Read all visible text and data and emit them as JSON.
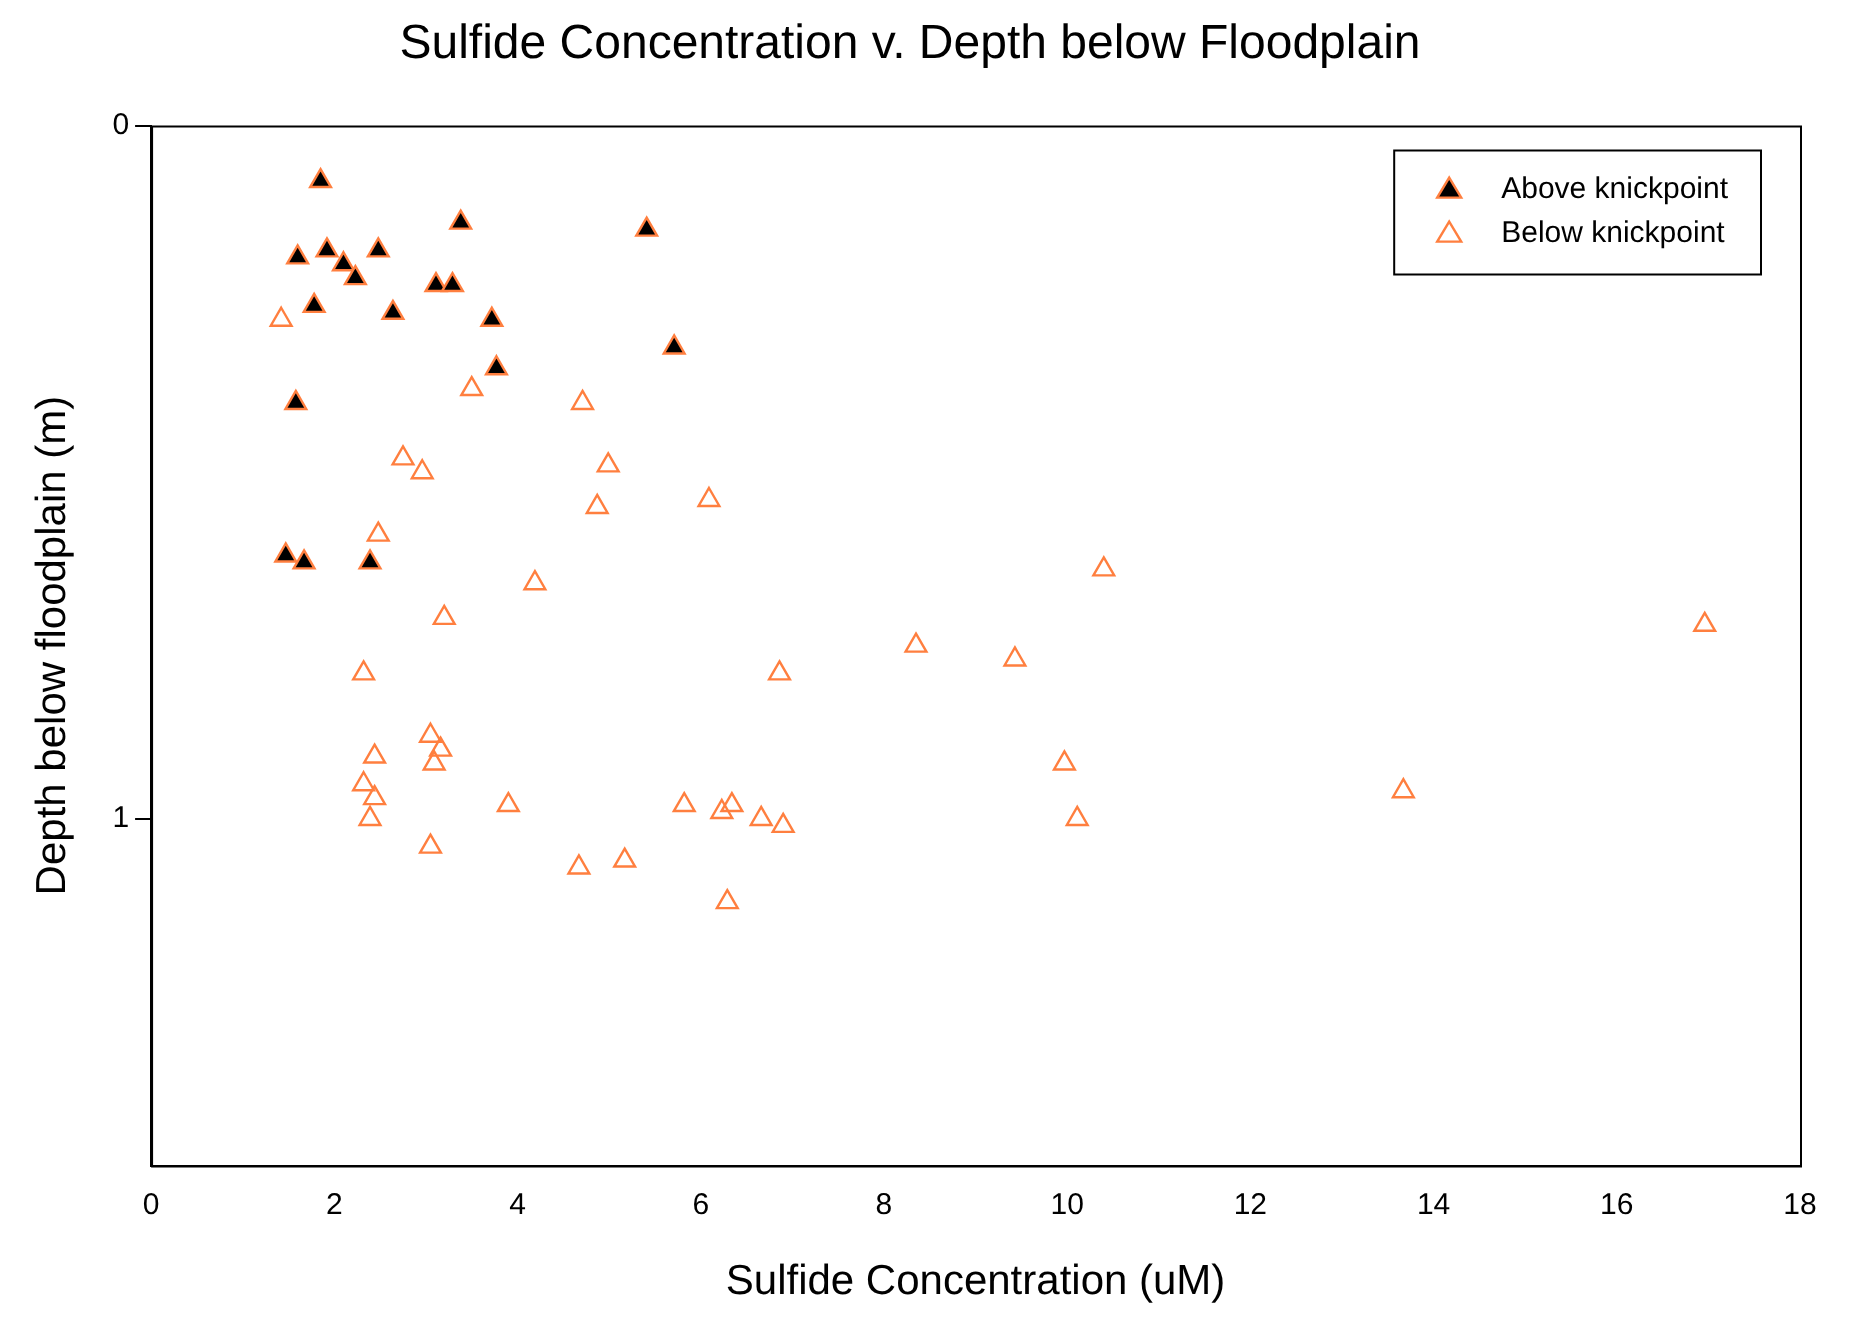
{
  "chart_data": {
    "type": "scatter",
    "title": "Sulfide Concentration v. Depth below Floodplain",
    "xlabel": "Sulfide Concentration (uM)",
    "ylabel": "Depth below floodplain (m)",
    "xlim": [
      0,
      18
    ],
    "xticks": [
      0,
      2,
      4,
      6,
      8,
      10,
      12,
      14,
      16,
      18
    ],
    "ylim": [
      1.5,
      0
    ],
    "yticks": [
      0,
      1
    ],
    "marker": "triangle",
    "legend": "top right",
    "grid": false,
    "series": [
      {
        "name": "Above knickpoint",
        "color": "#000000",
        "x": [
          1.85,
          5.41,
          3.38,
          1.6,
          1.92,
          2.1,
          2.23,
          2.48,
          1.78,
          2.64,
          3.11,
          3.29,
          3.72,
          3.77,
          5.71,
          1.58,
          1.47,
          1.67,
          2.39
        ],
        "values": [
          0.08,
          0.15,
          0.14,
          0.19,
          0.18,
          0.2,
          0.22,
          0.18,
          0.26,
          0.27,
          0.23,
          0.23,
          0.28,
          0.35,
          0.32,
          0.4,
          0.62,
          0.63,
          0.63
        ]
      },
      {
        "name": "Below knickpoint",
        "color": "#ff7f3f",
        "x": [
          1.42,
          3.5,
          4.71,
          2.75,
          2.96,
          4.99,
          4.87,
          6.09,
          2.48,
          10.4,
          4.19,
          3.2,
          8.35,
          9.43,
          16.96,
          6.86,
          2.32,
          3.05,
          3.16,
          3.09,
          2.44,
          2.32,
          2.44,
          2.39,
          3.9,
          9.97,
          3.05,
          5.82,
          6.23,
          6.34,
          6.66,
          6.9,
          10.11,
          13.67,
          4.67,
          5.17,
          6.29
        ],
        "values": [
          0.28,
          0.38,
          0.4,
          0.48,
          0.5,
          0.49,
          0.55,
          0.54,
          0.59,
          0.64,
          0.66,
          0.71,
          0.75,
          0.77,
          0.72,
          0.79,
          0.79,
          0.88,
          0.9,
          0.92,
          0.91,
          0.95,
          0.97,
          1.0,
          0.98,
          0.92,
          1.04,
          0.98,
          0.99,
          0.98,
          1.0,
          1.01,
          1.0,
          0.96,
          1.07,
          1.06,
          1.12
        ]
      }
    ]
  }
}
